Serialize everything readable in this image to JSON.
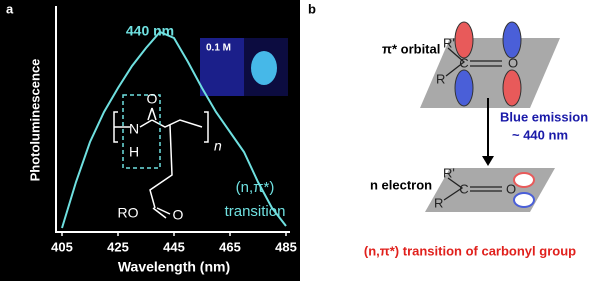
{
  "panel_a": {
    "label": "a",
    "chart_data": {
      "type": "line",
      "x_label": "Wavelength (nm)",
      "y_label": "Photoluminescence",
      "x": [
        405,
        410,
        415,
        420,
        425,
        430,
        435,
        440,
        445,
        450,
        455,
        460,
        465,
        470,
        475,
        480,
        485
      ],
      "values": [
        0.02,
        0.25,
        0.45,
        0.6,
        0.72,
        0.83,
        0.92,
        1.0,
        0.97,
        0.85,
        0.72,
        0.6,
        0.5,
        0.4,
        0.25,
        0.12,
        0.03
      ],
      "color": "#6fe0e0",
      "xlim": [
        405,
        485
      ],
      "xticks": [
        405,
        425,
        445,
        465,
        485
      ],
      "ylim": [
        0,
        1.05
      ],
      "annotations": [
        "440 nm",
        "0.1 M",
        "(n,π*)",
        "transition"
      ]
    },
    "structure": {
      "carbonyl_o": "O",
      "n": "N",
      "h": "H",
      "repeat": "n",
      "ester_r": "RO",
      "ester_o": "O"
    }
  },
  "panel_b": {
    "label": "b",
    "top": {
      "caption": "π* orbital",
      "r1": "R'",
      "c": "C",
      "o": "O",
      "r2": "R"
    },
    "arrow_label": [
      "Blue emission",
      "~ 440 nm"
    ],
    "bottom": {
      "caption": "n electron",
      "r1": "R'",
      "c": "C",
      "o": "O",
      "r2": "R"
    },
    "footer": "(n,π*) transition of carbonyl group"
  }
}
